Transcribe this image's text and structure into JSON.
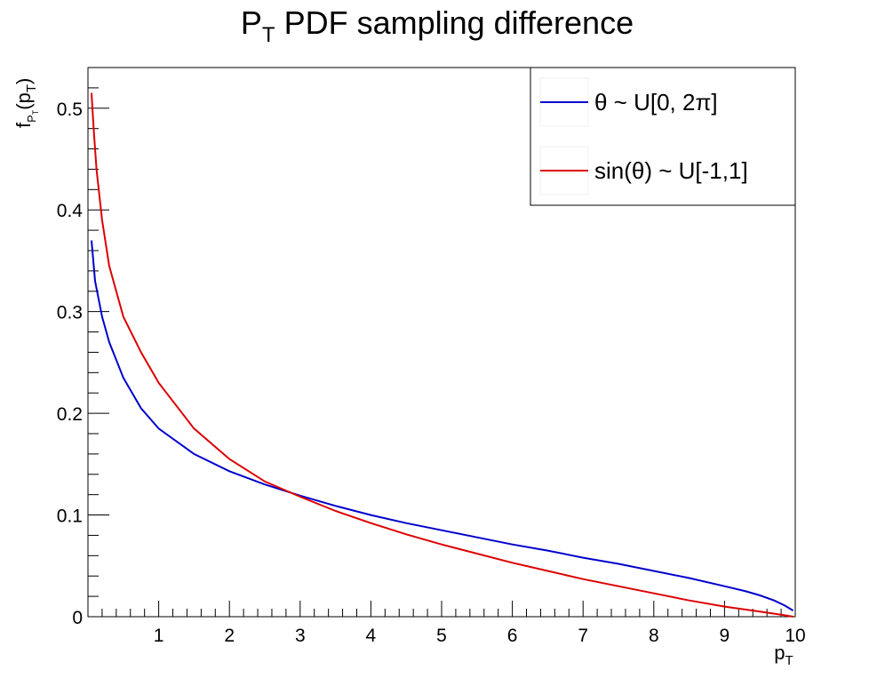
{
  "chart_data": {
    "type": "line",
    "title_main": "P",
    "title_sub": "T",
    "title_rest": " PDF sampling difference",
    "xlabel_main": "p",
    "xlabel_sub": "T",
    "ylabel_f": "f",
    "ylabel_sub_P": "P",
    "ylabel_sub_T": "T",
    "ylabel_arg_open": "(p",
    "ylabel_arg_sub": "T",
    "ylabel_arg_close": ")",
    "xlim": [
      0,
      10
    ],
    "ylim": [
      0,
      0.54
    ],
    "xticks": [
      "1",
      "2",
      "3",
      "4",
      "5",
      "6",
      "7",
      "8",
      "9",
      "10"
    ],
    "yticks": [
      "0",
      "0.1",
      "0.2",
      "0.3",
      "0.4",
      "0.5"
    ],
    "legend_position": "top-right",
    "series": [
      {
        "name": "θ ~ U[0, 2π]",
        "color": "#0000cc",
        "x": [
          0.05,
          0.1,
          0.2,
          0.3,
          0.5,
          0.75,
          1.0,
          1.5,
          2.0,
          2.5,
          3.0,
          3.5,
          4.0,
          4.5,
          5.0,
          5.5,
          6.0,
          6.5,
          7.0,
          7.5,
          8.0,
          8.5,
          9.0,
          9.3,
          9.5,
          9.7,
          9.85,
          9.97
        ],
        "y": [
          0.37,
          0.33,
          0.295,
          0.27,
          0.235,
          0.205,
          0.185,
          0.16,
          0.143,
          0.13,
          0.119,
          0.109,
          0.1,
          0.092,
          0.085,
          0.078,
          0.071,
          0.065,
          0.058,
          0.052,
          0.045,
          0.038,
          0.03,
          0.025,
          0.021,
          0.016,
          0.011,
          0.006
        ]
      },
      {
        "name": "sin(θ) ~ U[-1,1]",
        "color": "#dd0000",
        "x": [
          0.05,
          0.08,
          0.12,
          0.2,
          0.3,
          0.5,
          0.75,
          1.0,
          1.5,
          2.0,
          2.5,
          3.0,
          3.5,
          4.0,
          4.5,
          5.0,
          5.5,
          6.0,
          6.5,
          7.0,
          7.5,
          8.0,
          8.5,
          9.0,
          9.5,
          9.8,
          9.97
        ],
        "y": [
          0.515,
          0.48,
          0.44,
          0.39,
          0.345,
          0.295,
          0.26,
          0.23,
          0.185,
          0.155,
          0.133,
          0.118,
          0.104,
          0.092,
          0.081,
          0.071,
          0.062,
          0.053,
          0.045,
          0.037,
          0.03,
          0.023,
          0.016,
          0.01,
          0.005,
          0.002,
          0.0
        ]
      }
    ]
  }
}
